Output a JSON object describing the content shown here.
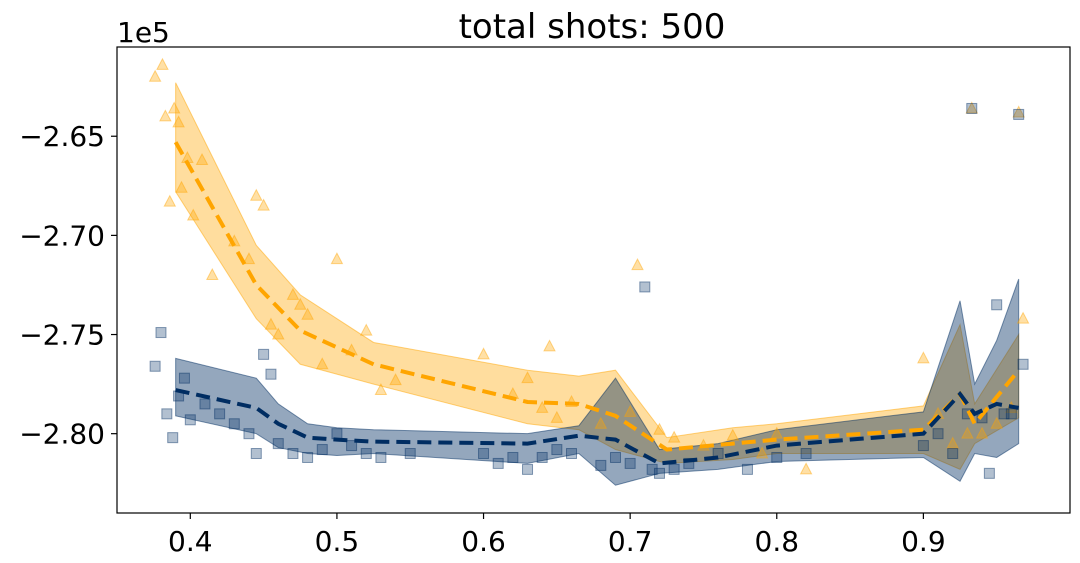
{
  "chart_data": {
    "type": "line",
    "title": "total shots: 500",
    "offset_label": "1e5",
    "xlabel": "",
    "ylabel": "",
    "xlim": [
      0.35,
      1.0
    ],
    "ylim": [
      -2.84,
      -2.605
    ],
    "x_ticks": [
      0.4,
      0.5,
      0.6,
      0.7,
      0.8,
      0.9
    ],
    "x_tick_labels": [
      "0.4",
      "0.5",
      "0.6",
      "0.7",
      "0.8",
      "0.9"
    ],
    "y_ticks": [
      -2.65,
      -2.7,
      -2.75,
      -2.8
    ],
    "y_tick_labels": [
      "−2.65",
      "−2.70",
      "−2.75",
      "−2.80"
    ],
    "grid": false,
    "series": [
      {
        "name": "orange",
        "color": "#FFA500",
        "marker": "triangle",
        "line": {
          "x": [
            0.39,
            0.445,
            0.475,
            0.525,
            0.63,
            0.665,
            0.69,
            0.725,
            0.77,
            0.8,
            0.9,
            0.925,
            0.935,
            0.965
          ],
          "y": [
            -2.653,
            -2.725,
            -2.748,
            -2.765,
            -2.784,
            -2.785,
            -2.791,
            -2.808,
            -2.805,
            -2.803,
            -2.798,
            -2.78,
            -2.795,
            -2.768
          ]
        },
        "band_upper": [
          -2.623,
          -2.705,
          -2.73,
          -2.754,
          -2.768,
          -2.771,
          -2.768,
          -2.802,
          -2.797,
          -2.795,
          -2.786,
          -2.745,
          -2.785,
          -2.75
        ],
        "band_lower": [
          -2.678,
          -2.742,
          -2.765,
          -2.775,
          -2.795,
          -2.798,
          -2.808,
          -2.815,
          -2.813,
          -2.81,
          -2.81,
          -2.818,
          -2.805,
          -2.792
        ],
        "scatter": {
          "x": [
            0.376,
            0.381,
            0.383,
            0.386,
            0.389,
            0.392,
            0.394,
            0.398,
            0.402,
            0.408,
            0.415,
            0.43,
            0.44,
            0.445,
            0.45,
            0.455,
            0.46,
            0.47,
            0.475,
            0.48,
            0.49,
            0.5,
            0.51,
            0.52,
            0.53,
            0.54,
            0.6,
            0.62,
            0.63,
            0.64,
            0.645,
            0.65,
            0.66,
            0.68,
            0.7,
            0.705,
            0.72,
            0.73,
            0.75,
            0.77,
            0.79,
            0.8,
            0.82,
            0.9,
            0.91,
            0.92,
            0.93,
            0.933,
            0.94,
            0.95,
            0.96,
            0.965,
            0.968
          ],
          "y": [
            -2.62,
            -2.614,
            -2.64,
            -2.683,
            -2.636,
            -2.643,
            -2.676,
            -2.661,
            -2.69,
            -2.662,
            -2.72,
            -2.703,
            -2.712,
            -2.68,
            -2.685,
            -2.745,
            -2.75,
            -2.73,
            -2.735,
            -2.74,
            -2.765,
            -2.712,
            -2.758,
            -2.748,
            -2.778,
            -2.773,
            -2.76,
            -2.78,
            -2.772,
            -2.787,
            -2.756,
            -2.792,
            -2.784,
            -2.795,
            -2.789,
            -2.715,
            -2.798,
            -2.802,
            -2.806,
            -2.801,
            -2.81,
            -2.8,
            -2.818,
            -2.762,
            -2.79,
            -2.805,
            -2.8,
            -2.636,
            -2.8,
            -2.795,
            -2.787,
            -2.638,
            -2.742
          ]
        }
      },
      {
        "name": "navy",
        "color": "#002D62",
        "marker": "square",
        "line": {
          "x": [
            0.39,
            0.445,
            0.46,
            0.48,
            0.5,
            0.525,
            0.63,
            0.665,
            0.69,
            0.72,
            0.76,
            0.8,
            0.9,
            0.925,
            0.935,
            0.95,
            0.965
          ],
          "y": [
            -2.778,
            -2.787,
            -2.795,
            -2.802,
            -2.803,
            -2.804,
            -2.805,
            -2.801,
            -2.803,
            -2.815,
            -2.812,
            -2.806,
            -2.8,
            -2.78,
            -2.79,
            -2.785,
            -2.787
          ]
        },
        "band_upper": [
          -2.762,
          -2.772,
          -2.785,
          -2.795,
          -2.797,
          -2.798,
          -2.8,
          -2.796,
          -2.772,
          -2.808,
          -2.805,
          -2.798,
          -2.789,
          -2.733,
          -2.775,
          -2.753,
          -2.722
        ],
        "band_lower": [
          -2.791,
          -2.8,
          -2.807,
          -2.81,
          -2.811,
          -2.81,
          -2.815,
          -2.81,
          -2.826,
          -2.82,
          -2.818,
          -2.814,
          -2.812,
          -2.824,
          -2.81,
          -2.812,
          -2.805
        ],
        "scatter": {
          "x": [
            0.376,
            0.38,
            0.384,
            0.388,
            0.392,
            0.396,
            0.4,
            0.41,
            0.42,
            0.43,
            0.44,
            0.445,
            0.45,
            0.455,
            0.46,
            0.47,
            0.48,
            0.49,
            0.5,
            0.51,
            0.52,
            0.53,
            0.55,
            0.6,
            0.61,
            0.62,
            0.63,
            0.64,
            0.65,
            0.66,
            0.68,
            0.69,
            0.7,
            0.71,
            0.715,
            0.72,
            0.73,
            0.74,
            0.76,
            0.78,
            0.8,
            0.82,
            0.9,
            0.91,
            0.92,
            0.93,
            0.933,
            0.94,
            0.945,
            0.95,
            0.955,
            0.96,
            0.965,
            0.968
          ],
          "y": [
            -2.766,
            -2.749,
            -2.79,
            -2.802,
            -2.781,
            -2.772,
            -2.793,
            -2.785,
            -2.79,
            -2.795,
            -2.8,
            -2.81,
            -2.76,
            -2.77,
            -2.805,
            -2.81,
            -2.812,
            -2.808,
            -2.8,
            -2.806,
            -2.81,
            -2.812,
            -2.81,
            -2.81,
            -2.815,
            -2.812,
            -2.818,
            -2.812,
            -2.808,
            -2.81,
            -2.816,
            -2.812,
            -2.815,
            -2.726,
            -2.818,
            -2.82,
            -2.818,
            -2.815,
            -2.81,
            -2.818,
            -2.812,
            -2.81,
            -2.806,
            -2.8,
            -2.81,
            -2.79,
            -2.636,
            -2.792,
            -2.82,
            -2.735,
            -2.79,
            -2.79,
            -2.639,
            -2.765
          ]
        }
      }
    ]
  }
}
